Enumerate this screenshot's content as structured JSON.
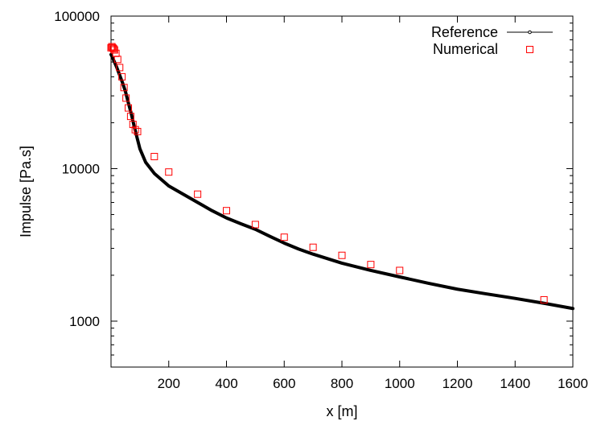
{
  "chart_data": {
    "type": "line",
    "title": "",
    "xlabel": "x [m]",
    "ylabel": "Impulse [Pa.s]",
    "xlim": [
      0,
      1600
    ],
    "ylim": [
      500,
      100000
    ],
    "yscale": "log",
    "xticks": [
      200,
      400,
      600,
      800,
      1000,
      1200,
      1400,
      1600
    ],
    "xtick_labels": [
      "200",
      "400",
      "600",
      "800",
      "1000",
      "1200",
      "1400",
      "1600"
    ],
    "yticks": [
      1000,
      10000,
      100000
    ],
    "ytick_labels": [
      "1000",
      "10000",
      "100000"
    ],
    "grid": false,
    "legend": {
      "placement": "top-right",
      "entries": [
        "Reference",
        "Numerical"
      ]
    },
    "series": [
      {
        "name": "Reference",
        "style": "line",
        "color": "#000000",
        "x": [
          0,
          10,
          20,
          30,
          40,
          50,
          60,
          70,
          80,
          90,
          100,
          120,
          150,
          200,
          250,
          300,
          350,
          400,
          450,
          500,
          550,
          600,
          650,
          700,
          800,
          900,
          1000,
          1100,
          1200,
          1300,
          1400,
          1500,
          1600
        ],
        "y": [
          56000,
          51000,
          46000,
          41000,
          36500,
          32000,
          27000,
          23000,
          19000,
          16000,
          13500,
          11000,
          9300,
          7700,
          6800,
          6000,
          5300,
          4750,
          4350,
          4000,
          3600,
          3250,
          2970,
          2750,
          2400,
          2150,
          1950,
          1770,
          1620,
          1510,
          1410,
          1310,
          1210
        ]
      },
      {
        "name": "Numerical",
        "style": "markers",
        "marker": "open-square",
        "color": "#ff0000",
        "x": [
          0,
          3,
          6,
          9,
          12,
          17,
          23,
          30,
          38,
          45,
          52,
          60,
          68,
          76,
          84,
          92,
          150,
          200,
          300,
          400,
          500,
          600,
          700,
          800,
          900,
          1000,
          1500
        ],
        "y": [
          62000,
          63000,
          62000,
          61000,
          60000,
          57000,
          52000,
          46000,
          40000,
          34000,
          29000,
          25000,
          22000,
          19500,
          18000,
          17500,
          12000,
          9500,
          6800,
          5300,
          4300,
          3550,
          3050,
          2700,
          2350,
          2150,
          1380
        ]
      }
    ]
  }
}
